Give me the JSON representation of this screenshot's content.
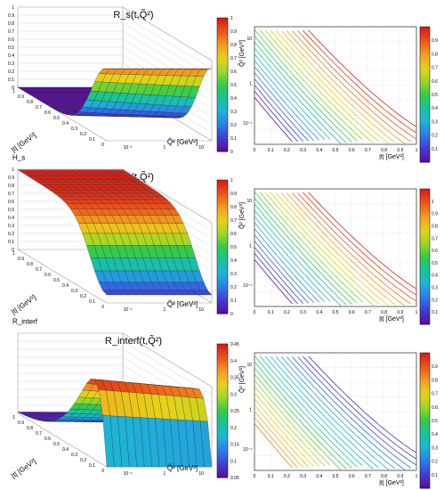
{
  "chart_data": [
    {
      "type": "surface",
      "title": "R_s(t,Q̃²)",
      "zlabel": "R_s",
      "xlabel": "|t| [GeV²]",
      "ylabel": "Q̃² [GeV²]",
      "x_ticks": [
        "0",
        "0.1",
        "0.2",
        "0.3",
        "0.4",
        "0.5",
        "0.6",
        "0.7",
        "0.8",
        "0.9",
        "1"
      ],
      "y_ticks": [
        "10⁻¹",
        "1",
        "10"
      ],
      "z_ticks": [
        "0",
        "0.1",
        "0.2",
        "0.3",
        "0.4",
        "0.5",
        "0.6",
        "0.7",
        "0.8",
        "0.9",
        "1"
      ],
      "colorbar_ticks": [
        "0",
        "0.1",
        "0.2",
        "0.3",
        "0.4",
        "0.5",
        "0.6",
        "0.7",
        "0.8",
        "0.9",
        "1"
      ],
      "zlim": [
        0,
        1
      ],
      "xlim": [
        0,
        1
      ],
      "ylim": [
        0.04,
        15
      ],
      "log_y": true,
      "shape": "R_s falls from ≈0.9 at |t|=0 to ≈0 by |t|≈0.5, nearly independent of Q̃²"
    },
    {
      "type": "contour",
      "xlabel": "|t| [GeV²]",
      "ylabel": "Q̃² [GeV²]",
      "x_ticks": [
        "0",
        "0.1",
        "0.2",
        "0.3",
        "0.4",
        "0.5",
        "0.6",
        "0.7",
        "0.8",
        "0.9",
        "1"
      ],
      "y_ticks": [
        "10⁻¹",
        "1",
        "10"
      ],
      "colorbar_ticks": [
        "0.1",
        "0.2",
        "0.3",
        "0.4",
        "0.5",
        "0.6",
        "0.7",
        "0.8",
        "0.9"
      ],
      "xlim": [
        0,
        1
      ],
      "ylim": [
        0.04,
        15
      ],
      "log_y": true,
      "contour_levels": [
        0.1,
        0.2,
        0.3,
        0.4,
        0.5,
        0.6,
        0.7,
        0.8,
        0.9,
        1.0
      ]
    },
    {
      "type": "surface",
      "title": "R_h(t,Q̃²)",
      "zlabel": "H_s",
      "xlabel": "|t| [GeV²]",
      "ylabel": "Q̃² [GeV²]",
      "x_ticks": [
        "0",
        "0.1",
        "0.2",
        "0.3",
        "0.4",
        "0.5",
        "0.6",
        "0.7",
        "0.8",
        "0.9",
        "1"
      ],
      "y_ticks": [
        "10⁻¹",
        "1",
        "10"
      ],
      "z_ticks": [
        "0",
        "0.1",
        "0.2",
        "0.3",
        "0.4",
        "0.5",
        "0.6",
        "0.7",
        "0.8",
        "0.9",
        "1"
      ],
      "colorbar_ticks": [
        "0",
        "0.1",
        "0.2",
        "0.3",
        "0.4",
        "0.5",
        "0.6",
        "0.7",
        "0.8",
        "0.9",
        "1"
      ],
      "zlim": [
        0,
        1
      ],
      "shape": "R_h rises from ≈0.1 at |t|=0 to ≈1 by |t|≈0.5"
    },
    {
      "type": "contour",
      "xlabel": "|t| [GeV²]",
      "ylabel": "Q̃² [GeV²]",
      "x_ticks": [
        "0",
        "0.1",
        "0.2",
        "0.3",
        "0.4",
        "0.5",
        "0.6",
        "0.7",
        "0.8",
        "0.9",
        "1"
      ],
      "y_ticks": [
        "10⁻¹",
        "1",
        "10"
      ],
      "colorbar_ticks": [
        "0.1",
        "0.2",
        "0.3",
        "0.4",
        "0.5",
        "0.6",
        "0.7",
        "0.8",
        "0.9",
        "1"
      ],
      "xlim": [
        0,
        1
      ],
      "ylim": [
        0.04,
        15
      ],
      "log_y": true,
      "contour_levels": [
        0.1,
        0.2,
        0.3,
        0.4,
        0.5,
        0.6,
        0.7,
        0.8,
        0.9,
        1.0
      ]
    },
    {
      "type": "surface",
      "title": "R_interf(t,Q̃²)",
      "zlabel": "R_interf",
      "xlabel": "|t| [GeV²]",
      "ylabel": "Q̃² [GeV²]",
      "x_ticks": [
        "0",
        "0.1",
        "0.2",
        "0.3",
        "0.4",
        "0.5",
        "0.6",
        "0.7",
        "0.8",
        "0.9",
        "1"
      ],
      "y_ticks": [
        "10⁻¹",
        "1",
        "10"
      ],
      "colorbar_ticks": [
        "0.05",
        "0.1",
        "0.15",
        "0.2",
        "0.25",
        "0.3",
        "0.35",
        "0.4",
        "0.45"
      ],
      "zlim": [
        0,
        0.48
      ],
      "shape": "R_interf peaks ≈0.45 around |t|≈0.15 and falls to ≈0 by |t|≈0.6"
    },
    {
      "type": "contour",
      "xlabel": "|t| [GeV²]",
      "ylabel": "Q̃² [GeV²]",
      "x_ticks": [
        "0",
        "0.1",
        "0.2",
        "0.3",
        "0.4",
        "0.5",
        "0.6",
        "0.7",
        "0.8",
        "0.9",
        "1"
      ],
      "y_ticks": [
        "10⁻¹",
        "1",
        "10"
      ],
      "colorbar_ticks": [
        "0.1",
        "0.2",
        "0.3",
        "0.4",
        "0.5",
        "0.6",
        "0.7",
        "0.8",
        "0.9"
      ],
      "xlim": [
        0,
        1
      ],
      "ylim": [
        0.04,
        15
      ],
      "log_y": true,
      "contour_levels": [
        0.1,
        0.2,
        0.3,
        0.4,
        0.5,
        0.6,
        0.7,
        0.8,
        0.9,
        1.0
      ]
    }
  ],
  "colors": {
    "palette": [
      "#5a0fa0",
      "#3f3fd8",
      "#2c7fe8",
      "#1fb3d6",
      "#17c49a",
      "#34c94c",
      "#9ad623",
      "#e6d21a",
      "#f0a020",
      "#ee5a18",
      "#d81f18"
    ]
  }
}
